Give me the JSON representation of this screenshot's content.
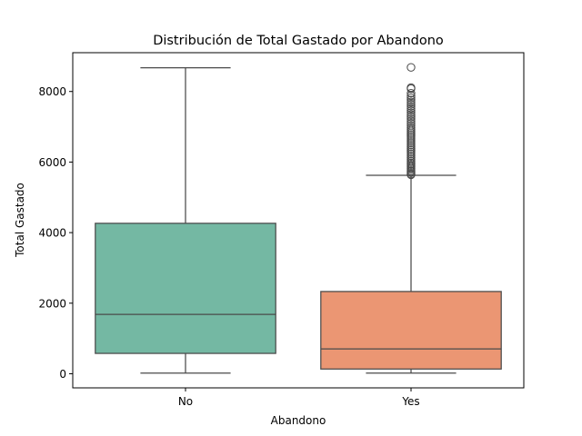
{
  "chart_data": {
    "type": "boxplot",
    "title": "Distribución de Total Gastado por Abandono",
    "xlabel": "Abandono",
    "ylabel": "Total Gastado",
    "categories": [
      "No",
      "Yes"
    ],
    "ylim": [
      -400,
      9100
    ],
    "yticks": [
      0,
      2000,
      4000,
      6000,
      8000
    ],
    "ytick_labels": [
      "0",
      "2000",
      "4000",
      "6000",
      "8000"
    ],
    "grid": false,
    "legend": "none",
    "colors": {
      "box_no": "#74b8a3",
      "box_yes": "#eb9673",
      "line": "#4a4a4a"
    },
    "boxes": [
      {
        "category": "No",
        "whisker_low": 19,
        "q1": 577,
        "median": 1683,
        "q3": 4264,
        "whisker_high": 8672,
        "outliers": []
      },
      {
        "category": "Yes",
        "whisker_low": 19,
        "q1": 134,
        "median": 703,
        "q3": 2331,
        "whisker_high": 5625,
        "outliers": [
          8684,
          8110,
          8080,
          7950,
          7880,
          7820,
          7760,
          7700,
          7640,
          7580,
          7520,
          7460,
          7400,
          7340,
          7280,
          7220,
          7160,
          7100,
          7040,
          6980,
          6930,
          6880,
          6830,
          6780,
          6730,
          6680,
          6630,
          6580,
          6530,
          6480,
          6430,
          6380,
          6330,
          6280,
          6230,
          6180,
          6130,
          6080,
          6030,
          5980,
          5940,
          5900,
          5860,
          5820,
          5780,
          5740,
          5700,
          5660,
          5640
        ]
      }
    ]
  }
}
